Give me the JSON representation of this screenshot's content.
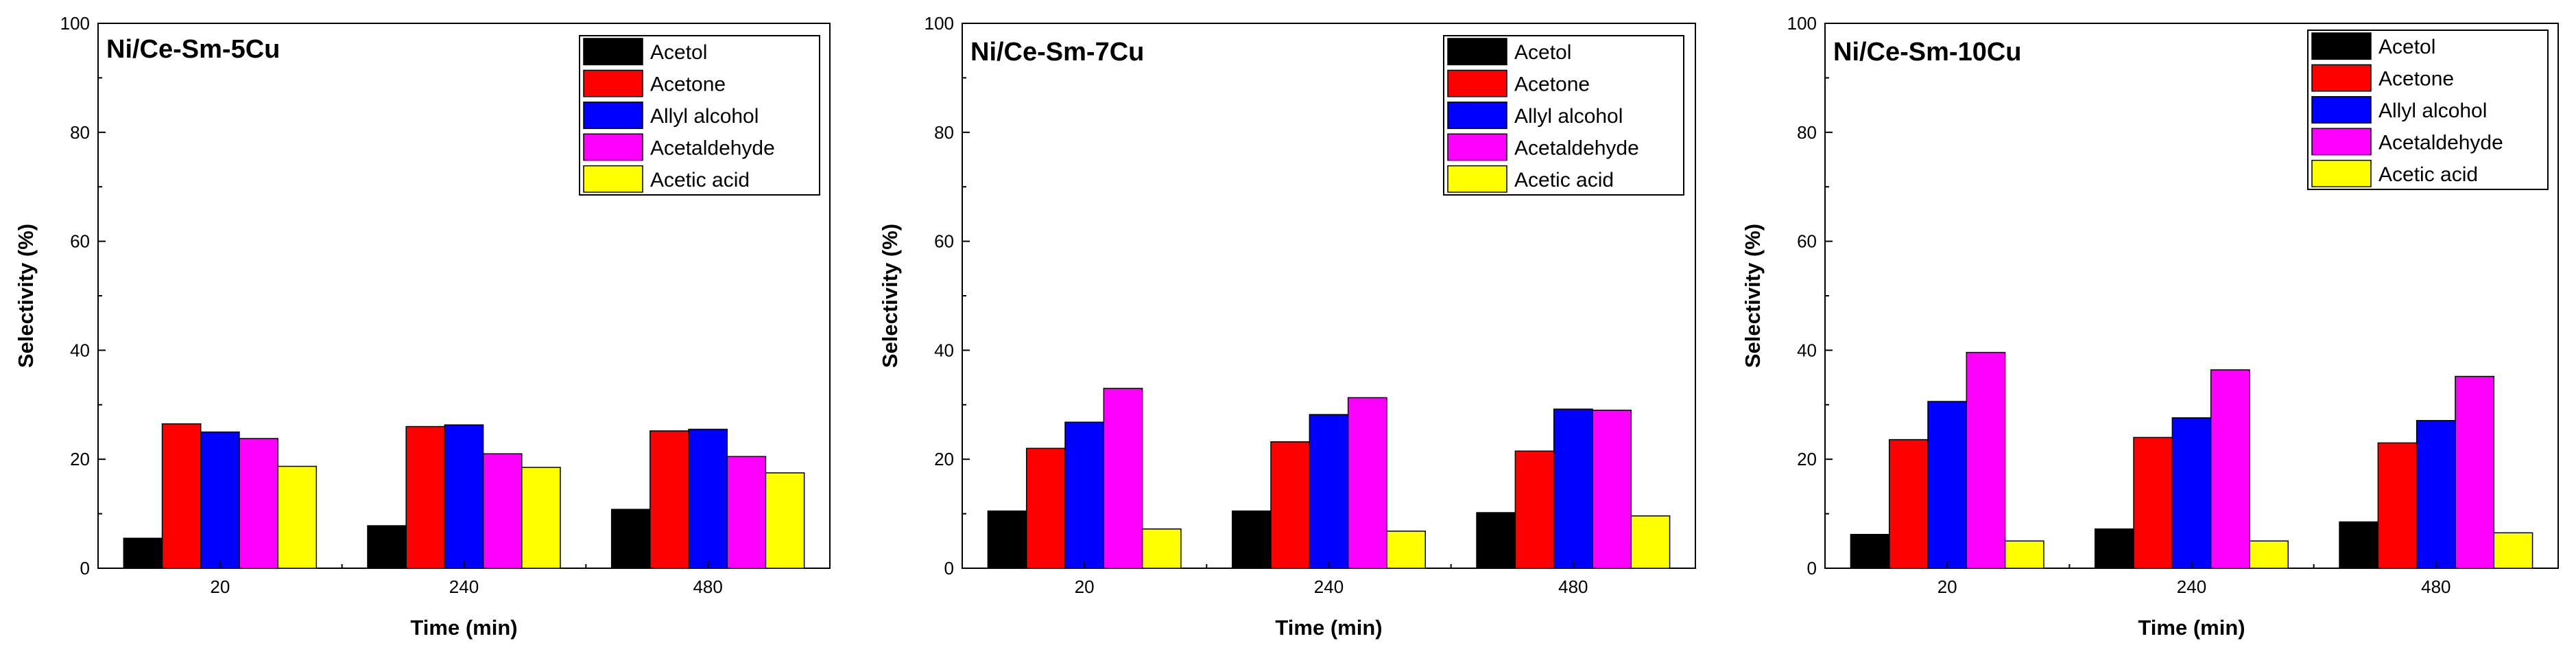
{
  "chart_data": [
    {
      "type": "bar",
      "title": "Ni/Ce-Sm-5Cu",
      "xlabel": "Time (min)",
      "ylabel": "Selectivity (%)",
      "ylim": [
        0,
        100
      ],
      "yticks": [
        0,
        20,
        40,
        60,
        80,
        100
      ],
      "ytick_labels": [
        "0",
        "20",
        "40",
        "60",
        "80",
        "100"
      ],
      "grid": false,
      "legend_position": "top-right",
      "categories": [
        "20",
        "240",
        "480"
      ],
      "series": [
        {
          "name": "Acetol",
          "color": "#000000",
          "values": [
            5.5,
            7.8,
            10.8
          ]
        },
        {
          "name": "Acetone",
          "color": "#ff0000",
          "values": [
            26.5,
            26.0,
            25.2
          ]
        },
        {
          "name": "Allyl alcohol",
          "color": "#0000ff",
          "values": [
            25.0,
            26.3,
            25.5
          ]
        },
        {
          "name": "Acetaldehyde",
          "color": "#ff00ff",
          "values": [
            23.8,
            21.0,
            20.5
          ]
        },
        {
          "name": "Acetic acid",
          "color": "#ffff00",
          "values": [
            18.7,
            18.5,
            17.5
          ]
        }
      ]
    },
    {
      "type": "bar",
      "title": "Ni/Ce-Sm-7Cu",
      "xlabel": "Time (min)",
      "ylabel": "Selectivity (%)",
      "ylim": [
        0,
        100
      ],
      "yticks": [
        0,
        20,
        40,
        60,
        80,
        100
      ],
      "ytick_labels": [
        "0",
        "20",
        "40",
        "60",
        "80",
        "100"
      ],
      "grid": false,
      "legend_position": "top-right",
      "categories": [
        "20",
        "240",
        "480"
      ],
      "series": [
        {
          "name": "Acetol",
          "color": "#000000",
          "values": [
            10.5,
            10.5,
            10.2
          ]
        },
        {
          "name": "Acetone",
          "color": "#ff0000",
          "values": [
            22.0,
            23.2,
            21.5
          ]
        },
        {
          "name": "Allyl alcohol",
          "color": "#0000ff",
          "values": [
            26.8,
            28.2,
            29.2
          ]
        },
        {
          "name": "Acetaldehyde",
          "color": "#ff00ff",
          "values": [
            33.0,
            31.3,
            29.0
          ]
        },
        {
          "name": "Acetic acid",
          "color": "#ffff00",
          "values": [
            7.2,
            6.8,
            9.6
          ]
        }
      ]
    },
    {
      "type": "bar",
      "title": "Ni/Ce-Sm-10Cu",
      "xlabel": "Time (min)",
      "ylabel": "Selectivity (%)",
      "ylim": [
        0,
        100
      ],
      "yticks": [
        0,
        20,
        40,
        60,
        80,
        100
      ],
      "ytick_labels": [
        "0",
        "20",
        "40",
        "60",
        "80",
        "100"
      ],
      "grid": false,
      "legend_position": "top-right",
      "categories": [
        "20",
        "240",
        "480"
      ],
      "series": [
        {
          "name": "Acetol",
          "color": "#000000",
          "values": [
            6.2,
            7.2,
            8.5
          ]
        },
        {
          "name": "Acetone",
          "color": "#ff0000",
          "values": [
            23.6,
            24.0,
            23.0
          ]
        },
        {
          "name": "Allyl alcohol",
          "color": "#0000ff",
          "values": [
            30.6,
            27.6,
            27.1
          ]
        },
        {
          "name": "Acetaldehyde",
          "color": "#ff00ff",
          "values": [
            39.6,
            36.4,
            35.2
          ]
        },
        {
          "name": "Acetic acid",
          "color": "#ffff00",
          "values": [
            5.0,
            5.0,
            6.5
          ]
        }
      ]
    }
  ]
}
